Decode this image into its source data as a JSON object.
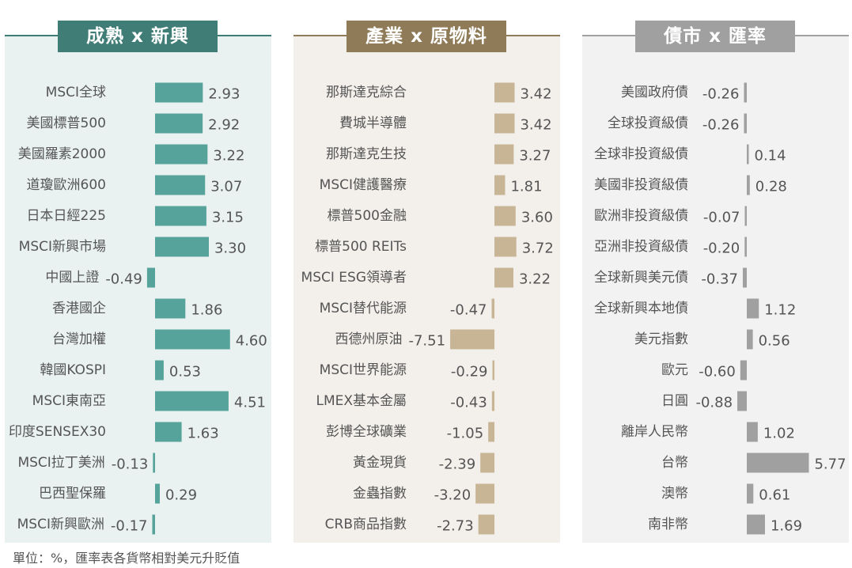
{
  "chart_data": [
    {
      "type": "bar",
      "title": "成熟 x 新興",
      "color": "#55a39a",
      "header_color": "#3f7d76",
      "panel_bg": "#e9f1f1",
      "categories": [
        "MSCI全球",
        "美國標普500",
        "美國羅素2000",
        "道瓊歐洲600",
        "日本日經225",
        "MSCI新興市場",
        "中國上證",
        "香港國企",
        "台灣加權",
        "韓國KOSPI",
        "MSCI東南亞",
        "印度SENSEX30",
        "MSCI拉丁美洲",
        "巴西聖保羅",
        "MSCI新興歐洲"
      ],
      "values": [
        2.93,
        2.92,
        3.22,
        3.07,
        3.15,
        3.3,
        -0.49,
        1.86,
        4.6,
        0.53,
        4.51,
        1.63,
        -0.13,
        0.29,
        -0.17
      ],
      "value_labels": [
        "2.93",
        "2.92",
        "3.22",
        "3.07",
        "3.15",
        "3.30",
        "-0.49",
        "1.86",
        "4.60",
        "0.53",
        "4.51",
        "1.63",
        "-0.13",
        "0.29",
        "-0.17"
      ]
    },
    {
      "type": "bar",
      "title": "產業 x 原物料",
      "color": "#c8b596",
      "header_color": "#8f7b58",
      "panel_bg": "#f3f0ec",
      "categories": [
        "那斯達克綜合",
        "費城半導體",
        "那斯達克生技",
        "MSCI健護醫療",
        "標普500金融",
        "標普500 REITs",
        "MSCI ESG領導者",
        "MSCI替代能源",
        "西德州原油",
        "MSCI世界能源",
        "LMEX基本金屬",
        "彭博全球礦業",
        "黃金現貨",
        "金蟲指數",
        "CRB商品指數"
      ],
      "values": [
        3.42,
        3.42,
        3.27,
        1.81,
        3.6,
        3.72,
        3.22,
        -0.47,
        -7.51,
        -0.29,
        -0.43,
        -1.05,
        -2.39,
        -3.2,
        -2.73
      ],
      "value_labels": [
        "3.42",
        "3.42",
        "3.27",
        "1.81",
        "3.60",
        "3.72",
        "3.22",
        "-0.47",
        "-7.51",
        "-0.29",
        "-0.43",
        "-1.05",
        "-2.39",
        "-3.20",
        "-2.73"
      ]
    },
    {
      "type": "bar",
      "title": "債市 x 匯率",
      "color": "#a0a0a0",
      "header_color": "#a0a0a0",
      "panel_bg": "#f2f2f2",
      "categories": [
        "美國政府債",
        "全球投資級債",
        "全球非投資級債",
        "美國非投資級債",
        "歐洲非投資級債",
        "亞洲非投資級債",
        "全球新興美元債",
        "全球新興本地債",
        "美元指數",
        "歐元",
        "日圓",
        "離岸人民幣",
        "台幣",
        "澳幣",
        "南非幣"
      ],
      "values": [
        -0.26,
        -0.26,
        0.14,
        0.28,
        -0.07,
        -0.2,
        -0.37,
        1.12,
        0.56,
        -0.6,
        -0.88,
        1.02,
        5.77,
        0.61,
        1.69
      ],
      "value_labels": [
        "-0.26",
        "-0.26",
        "0.14",
        "0.28",
        "-0.07",
        "-0.20",
        "-0.37",
        "1.12",
        "0.56",
        "-0.60",
        "-0.88",
        "1.02",
        "5.77",
        "0.61",
        "1.69"
      ]
    }
  ],
  "footnote": "單位：%，匯率表各貨幣相對美元升貶值"
}
